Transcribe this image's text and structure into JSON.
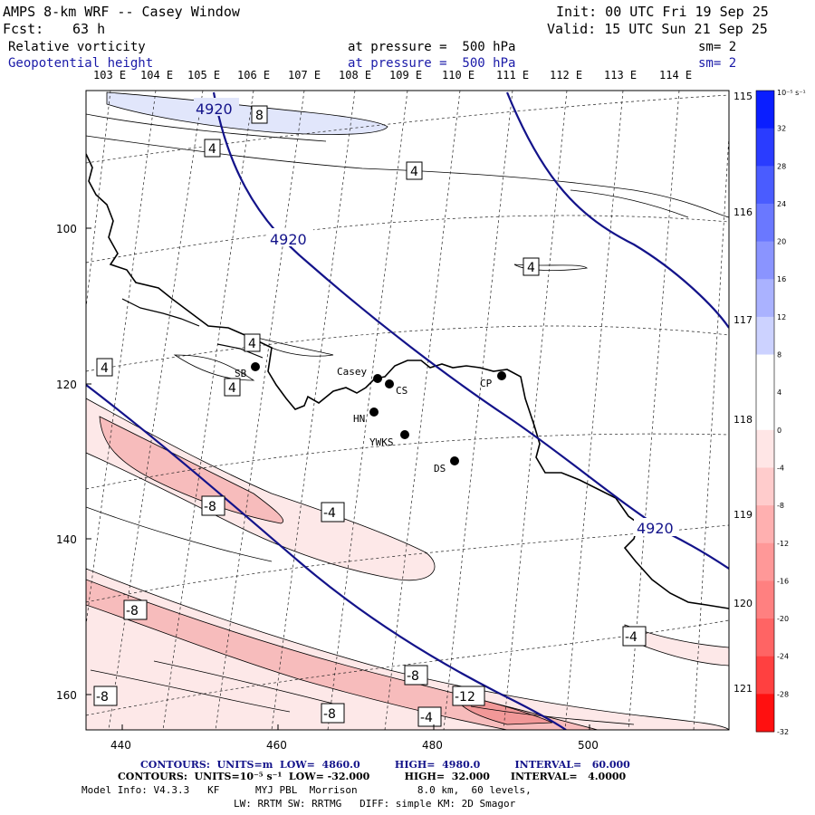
{
  "header": {
    "title": "AMPS 8-km WRF -- Casey Window",
    "init": "Init: 00 UTC Fri 19 Sep 25",
    "fcst_label": "Fcst:",
    "fcst_value": "63 h",
    "valid": "Valid: 15 UTC Sun 21 Sep 25",
    "field1": "Relative vorticity",
    "field1_level": "at pressure =  500 hPa",
    "field1_sm": "sm= 2",
    "field2": "Geopotential height",
    "field2_level": "at pressure =  500 hPa",
    "field2_sm": "sm= 2"
  },
  "axes": {
    "top_longitudes": [
      "103 E",
      "104 E",
      "105 E",
      "106 E",
      "107 E",
      "108 E",
      "109 E",
      "110 E",
      "111 E",
      "112 E",
      "113 E",
      "114 E"
    ],
    "right_longitudes": [
      "115 E",
      "116 E",
      "117 E",
      "118 E",
      "119 E",
      "120 E",
      "121 E"
    ],
    "y_ticks": [
      "100",
      "120",
      "140",
      "160"
    ],
    "x_ticks": [
      "440",
      "460",
      "480",
      "500"
    ]
  },
  "stations": [
    {
      "id": "SB"
    },
    {
      "id": "Casey"
    },
    {
      "id": "CS"
    },
    {
      "id": "HN"
    },
    {
      "id": "YWKS"
    },
    {
      "id": "CP"
    },
    {
      "id": "DS"
    }
  ],
  "contour_labels": {
    "height": [
      "4920",
      "4920",
      "4920"
    ],
    "vorticity": [
      "8",
      "4",
      "4",
      "4",
      "4",
      "4",
      "4",
      "4",
      "-8",
      "-4",
      "-8",
      "-8",
      "-8",
      "-12",
      "-8",
      "-4",
      "-4"
    ]
  },
  "colorbar": {
    "units": "10⁻⁵ s⁻¹",
    "levels": [
      "32",
      "28",
      "24",
      "20",
      "16",
      "12",
      "8",
      "4",
      "0",
      "-4",
      "-8",
      "-12",
      "-16",
      "-20",
      "-24",
      "-28",
      "-32"
    ],
    "colors": [
      "#0a1eff",
      "#2a3cff",
      "#4a5cff",
      "#6a78ff",
      "#8a94ff",
      "#aab2ff",
      "#ccd2ff",
      "#ffffff",
      "#ffffff",
      "#ffe6e6",
      "#ffcccc",
      "#ffb0b0",
      "#ff9898",
      "#ff8080",
      "#ff6464",
      "#ff4040",
      "#ff1010"
    ]
  },
  "footer": {
    "line1": "CONTOURS:  UNITS=m  LOW=  4860.0          HIGH=  4980.0          INTERVAL=   60.000",
    "line2": "CONTOURS:  UNITS=10⁻⁵ s⁻¹  LOW= -32.000          HIGH=  32.000      INTERVAL=   4.0000",
    "line3": "Model Info: V4.3.3   KF      MYJ PBL  Morrison          8.0 km,  60 levels,",
    "line4": "LW: RRTM SW: RRTMG   DIFF: simple KM: 2D Smagor"
  }
}
